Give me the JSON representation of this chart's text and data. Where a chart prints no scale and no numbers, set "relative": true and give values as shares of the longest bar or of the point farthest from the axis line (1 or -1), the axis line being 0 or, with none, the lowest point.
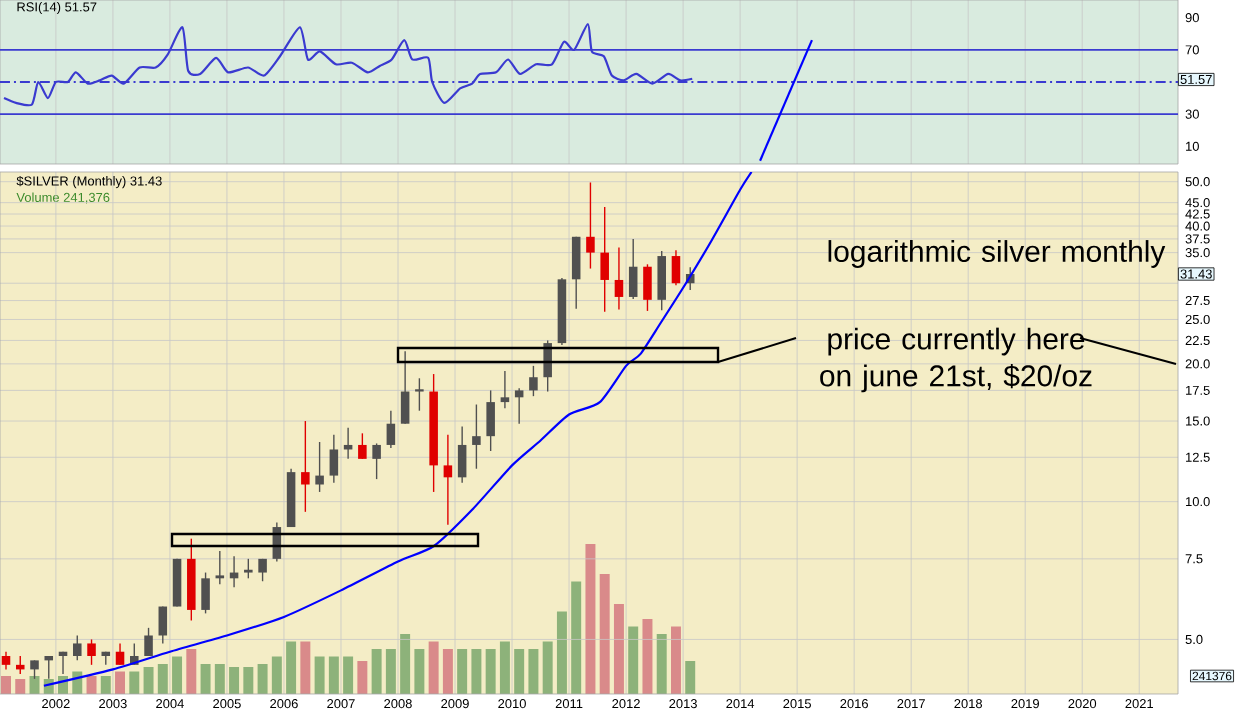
{
  "chart_data": [
    {
      "type": "line",
      "title": "RSI(14) 51.57",
      "xlim": [
        2001.02,
        2021.68
      ],
      "ylim": [
        -1,
        101
      ],
      "yticks": [
        10,
        30,
        70,
        90
      ],
      "grid": "x",
      "tick_labels": "y",
      "series": [
        {
          "color": "#3a3ad0",
          "x": [
            2001.09,
            2001.3,
            2001.58,
            2001.69,
            2001.86,
            2002.0,
            2002.21,
            2002.35,
            2002.56,
            2002.77,
            2002.98,
            2003.19,
            2003.47,
            2003.75,
            2003.96,
            2004.22,
            2004.32,
            2004.53,
            2004.81,
            2005.02,
            2005.37,
            2005.65,
            2005.93,
            2006.28,
            2006.42,
            2006.63,
            2006.91,
            2007.19,
            2007.47,
            2007.68,
            2007.89,
            2008.11,
            2008.25,
            2008.53,
            2008.6,
            2008.81,
            2009.09,
            2009.3,
            2009.44,
            2009.72,
            2009.93,
            2010.14,
            2010.42,
            2010.7,
            2010.91,
            2011.09,
            2011.33,
            2011.4,
            2011.61,
            2011.75,
            2011.96,
            2012.18,
            2012.46,
            2012.74,
            2012.95,
            2013.16
          ],
          "values": [
            40,
            37,
            36,
            50,
            40,
            50,
            50,
            56,
            49,
            51,
            54,
            49,
            59,
            59,
            67,
            84,
            57,
            55,
            65,
            56,
            59,
            54,
            66,
            84,
            64,
            69,
            61,
            62,
            56,
            60,
            64,
            76,
            64,
            65,
            50,
            37,
            46,
            49,
            55,
            56,
            64,
            55,
            61,
            61,
            75,
            70,
            86,
            69,
            66,
            54,
            51,
            55,
            49,
            55,
            51,
            52
          ]
        },
        {
          "type": "line",
          "color": "#0000ff",
          "x": [
            2014.35,
            2015.26
          ],
          "values": [
            1,
            76
          ]
        }
      ],
      "ref_lines": [
        {
          "axis": "y",
          "value": 70,
          "color": "#3a3ad0"
        },
        {
          "axis": "y",
          "value": 30,
          "color": "#3a3ad0"
        },
        {
          "axis": "y",
          "value": 50,
          "color": "#3a3ad0",
          "line_style": "dashed"
        }
      ],
      "annotations": [
        {
          "text": "51.57",
          "y": 51.57
        }
      ]
    },
    {
      "type": "candlestick",
      "title": "$SILVER (Monthly) 31.43",
      "log": "y",
      "grid": true,
      "xlim": [
        2001.02,
        2021.68
      ],
      "ylim": [
        3.8,
        52.5
      ],
      "xticks": [
        2002,
        2003,
        2004,
        2005,
        2006,
        2007,
        2008,
        2009,
        2010,
        2011,
        2012,
        2013,
        2014,
        2015,
        2016,
        2017,
        2018,
        2019,
        2020,
        2021
      ],
      "yticks": [
        {
          "value": 5,
          "label": "5.0"
        },
        {
          "value": 7.5,
          "label": "7.5"
        },
        {
          "value": 10,
          "label": "10.0"
        },
        {
          "value": 12.5,
          "label": "12.5"
        },
        {
          "value": 15,
          "label": "15.0"
        },
        {
          "value": 17.5,
          "label": "17.5"
        },
        {
          "value": 20,
          "label": "20.0"
        },
        {
          "value": 22.5,
          "label": "22.5"
        },
        {
          "value": 25,
          "label": "25.0"
        },
        {
          "value": 27.5,
          "label": "27.5"
        },
        {
          "value": 30,
          "label": null
        },
        {
          "value": 35,
          "label": "35.0"
        },
        {
          "value": 37.5,
          "label": "37.5"
        },
        {
          "value": 40,
          "label": "40.0"
        },
        {
          "value": 42.5,
          "label": "42.5"
        },
        {
          "value": 45,
          "label": "45.0"
        },
        {
          "value": 50,
          "label": "50.0"
        }
      ],
      "x": [
        2001.125,
        2001.375,
        2001.625,
        2001.875,
        2002.125,
        2002.375,
        2002.625,
        2002.875,
        2003.125,
        2003.375,
        2003.625,
        2003.875,
        2004.125,
        2004.375,
        2004.625,
        2004.875,
        2005.125,
        2005.375,
        2005.625,
        2005.875,
        2006.125,
        2006.375,
        2006.625,
        2006.875,
        2007.125,
        2007.375,
        2007.625,
        2007.875,
        2008.125,
        2008.375,
        2008.625,
        2008.875,
        2009.125,
        2009.375,
        2009.625,
        2009.875,
        2010.125,
        2010.375,
        2010.625,
        2010.875,
        2011.125,
        2011.375,
        2011.625,
        2011.875,
        2012.125,
        2012.375,
        2012.625,
        2012.875,
        2013.125
      ],
      "ohlc": [
        [
          4.6,
          4.7,
          4.3,
          4.4
        ],
        [
          4.4,
          4.6,
          4.2,
          4.3
        ],
        [
          4.3,
          4.5,
          4.1,
          4.5
        ],
        [
          4.5,
          4.6,
          4.1,
          4.6
        ],
        [
          4.6,
          4.7,
          4.2,
          4.7
        ],
        [
          4.6,
          5.1,
          4.5,
          4.9
        ],
        [
          4.9,
          5.0,
          4.4,
          4.6
        ],
        [
          4.6,
          4.7,
          4.4,
          4.7
        ],
        [
          4.7,
          4.9,
          4.4,
          4.4
        ],
        [
          4.4,
          4.9,
          4.4,
          4.6
        ],
        [
          4.6,
          5.3,
          4.6,
          5.1
        ],
        [
          5.1,
          5.9,
          4.9,
          5.9
        ],
        [
          5.9,
          7.5,
          5.9,
          7.5
        ],
        [
          7.5,
          8.3,
          5.5,
          5.8
        ],
        [
          5.8,
          7.0,
          5.7,
          6.8
        ],
        [
          6.8,
          7.8,
          6.6,
          6.9
        ],
        [
          6.8,
          7.6,
          6.5,
          7.0
        ],
        [
          7.0,
          7.5,
          6.8,
          7.1
        ],
        [
          7.0,
          7.5,
          6.7,
          7.5
        ],
        [
          7.5,
          9.0,
          7.4,
          8.8
        ],
        [
          8.8,
          11.8,
          8.8,
          11.6
        ],
        [
          11.6,
          15.0,
          9.5,
          10.9
        ],
        [
          10.9,
          13.5,
          10.5,
          11.4
        ],
        [
          11.4,
          14.0,
          11.0,
          13.0
        ],
        [
          13.0,
          14.5,
          12.4,
          13.3
        ],
        [
          13.3,
          14.1,
          12.4,
          12.4
        ],
        [
          12.4,
          13.4,
          11.2,
          13.3
        ],
        [
          13.3,
          15.8,
          13.1,
          14.8
        ],
        [
          14.8,
          21.3,
          14.8,
          17.4
        ],
        [
          17.4,
          18.6,
          15.8,
          17.6
        ],
        [
          17.4,
          19.0,
          10.5,
          12.0
        ],
        [
          12.0,
          14.0,
          8.9,
          11.3
        ],
        [
          11.3,
          14.6,
          11.0,
          13.3
        ],
        [
          13.3,
          16.3,
          11.8,
          13.9
        ],
        [
          13.9,
          17.5,
          12.9,
          16.5
        ],
        [
          16.5,
          19.3,
          16.0,
          16.9
        ],
        [
          16.9,
          17.7,
          14.8,
          17.5
        ],
        [
          17.5,
          19.8,
          17.0,
          18.7
        ],
        [
          18.7,
          22.5,
          17.4,
          22.2
        ],
        [
          22.2,
          30.8,
          22.0,
          30.6
        ],
        [
          30.6,
          37.9,
          26.4,
          37.9
        ],
        [
          37.9,
          49.8,
          32.3,
          35.0
        ],
        [
          35.0,
          44.0,
          26.0,
          30.5
        ],
        [
          30.5,
          35.9,
          26.3,
          28.0
        ],
        [
          28.0,
          37.5,
          27.7,
          32.6
        ],
        [
          32.6,
          33.0,
          26.1,
          27.6
        ],
        [
          27.6,
          35.3,
          26.2,
          34.4
        ],
        [
          34.4,
          35.4,
          29.7,
          30.0
        ],
        [
          30.0,
          32.5,
          29.0,
          31.43
        ]
      ],
      "colors": [
        "#e00000",
        "#e00000",
        "#505050",
        "#505050",
        "#505050",
        "#505050",
        "#e00000",
        "#505050",
        "#e00000",
        "#505050",
        "#505050",
        "#505050",
        "#505050",
        "#e00000",
        "#505050",
        "#505050",
        "#505050",
        "#505050",
        "#505050",
        "#505050",
        "#505050",
        "#e00000",
        "#505050",
        "#505050",
        "#505050",
        "#e00000",
        "#505050",
        "#505050",
        "#505050",
        "#505050",
        "#e00000",
        "#e00000",
        "#505050",
        "#505050",
        "#505050",
        "#505050",
        "#505050",
        "#505050",
        "#505050",
        "#505050",
        "#505050",
        "#e00000",
        "#e00000",
        "#e00000",
        "#505050",
        "#e00000",
        "#505050",
        "#e00000",
        "#505050"
      ],
      "series": [
        {
          "type": "line",
          "color": "#0000ff",
          "x": [
            2001.79,
            2003,
            2004,
            2005,
            2006,
            2007,
            2008,
            2008.63,
            2009.3,
            2010,
            2010.5,
            2011,
            2011.54,
            2012,
            2012.25,
            2012.6,
            2013.05,
            2013.5,
            2014,
            2014.2
          ],
          "values": [
            3.96,
            4.3,
            4.7,
            5.1,
            5.6,
            6.4,
            7.4,
            8.0,
            9.6,
            12.0,
            13.6,
            15.5,
            16.5,
            19.8,
            21.0,
            24.5,
            30.0,
            37.2,
            48.0,
            52.5
          ]
        }
      ],
      "annotations": [
        {
          "text": "31.43",
          "y": 31.43
        },
        "logarithmic silver monthly",
        "price currently here on june 21st, $20/oz"
      ]
    },
    {
      "type": "bar",
      "relative": true,
      "title": "Volume 241,376",
      "xlim": [
        2001.02,
        2021.68
      ],
      "tick_labels": false,
      "x": [
        2001.125,
        2001.375,
        2001.625,
        2001.875,
        2002.125,
        2002.375,
        2002.625,
        2002.875,
        2003.125,
        2003.375,
        2003.625,
        2003.875,
        2004.125,
        2004.375,
        2004.625,
        2004.875,
        2005.125,
        2005.375,
        2005.625,
        2005.875,
        2006.125,
        2006.375,
        2006.625,
        2006.875,
        2007.125,
        2007.375,
        2007.625,
        2007.875,
        2008.125,
        2008.375,
        2008.625,
        2008.875,
        2009.125,
        2009.375,
        2009.625,
        2009.875,
        2010.125,
        2010.375,
        2010.625,
        2010.875,
        2011.125,
        2011.375,
        2011.625,
        2011.875,
        2012.125,
        2012.375,
        2012.625,
        2012.875,
        2013.125
      ],
      "values": [
        0.12,
        0.1,
        0.12,
        0.1,
        0.12,
        0.15,
        0.12,
        0.12,
        0.15,
        0.15,
        0.18,
        0.2,
        0.25,
        0.3,
        0.2,
        0.2,
        0.18,
        0.18,
        0.2,
        0.25,
        0.35,
        0.35,
        0.25,
        0.25,
        0.25,
        0.22,
        0.3,
        0.3,
        0.4,
        0.3,
        0.35,
        0.3,
        0.3,
        0.3,
        0.3,
        0.35,
        0.3,
        0.3,
        0.35,
        0.55,
        0.75,
        1.0,
        0.8,
        0.6,
        0.45,
        0.5,
        0.4,
        0.45,
        0.22
      ],
      "colors": [
        "#d98a8a",
        "#d98a8a",
        "#8db27a",
        "#8db27a",
        "#8db27a",
        "#8db27a",
        "#d98a8a",
        "#8db27a",
        "#d98a8a",
        "#8db27a",
        "#8db27a",
        "#8db27a",
        "#8db27a",
        "#d98a8a",
        "#8db27a",
        "#8db27a",
        "#8db27a",
        "#8db27a",
        "#8db27a",
        "#8db27a",
        "#8db27a",
        "#d98a8a",
        "#8db27a",
        "#8db27a",
        "#8db27a",
        "#d98a8a",
        "#8db27a",
        "#8db27a",
        "#8db27a",
        "#8db27a",
        "#d98a8a",
        "#d98a8a",
        "#8db27a",
        "#8db27a",
        "#8db27a",
        "#8db27a",
        "#8db27a",
        "#8db27a",
        "#8db27a",
        "#8db27a",
        "#8db27a",
        "#d98a8a",
        "#d98a8a",
        "#d98a8a",
        "#8db27a",
        "#d98a8a",
        "#8db27a",
        "#d98a8a",
        "#8db27a"
      ],
      "annotations": [
        "241376"
      ]
    }
  ]
}
